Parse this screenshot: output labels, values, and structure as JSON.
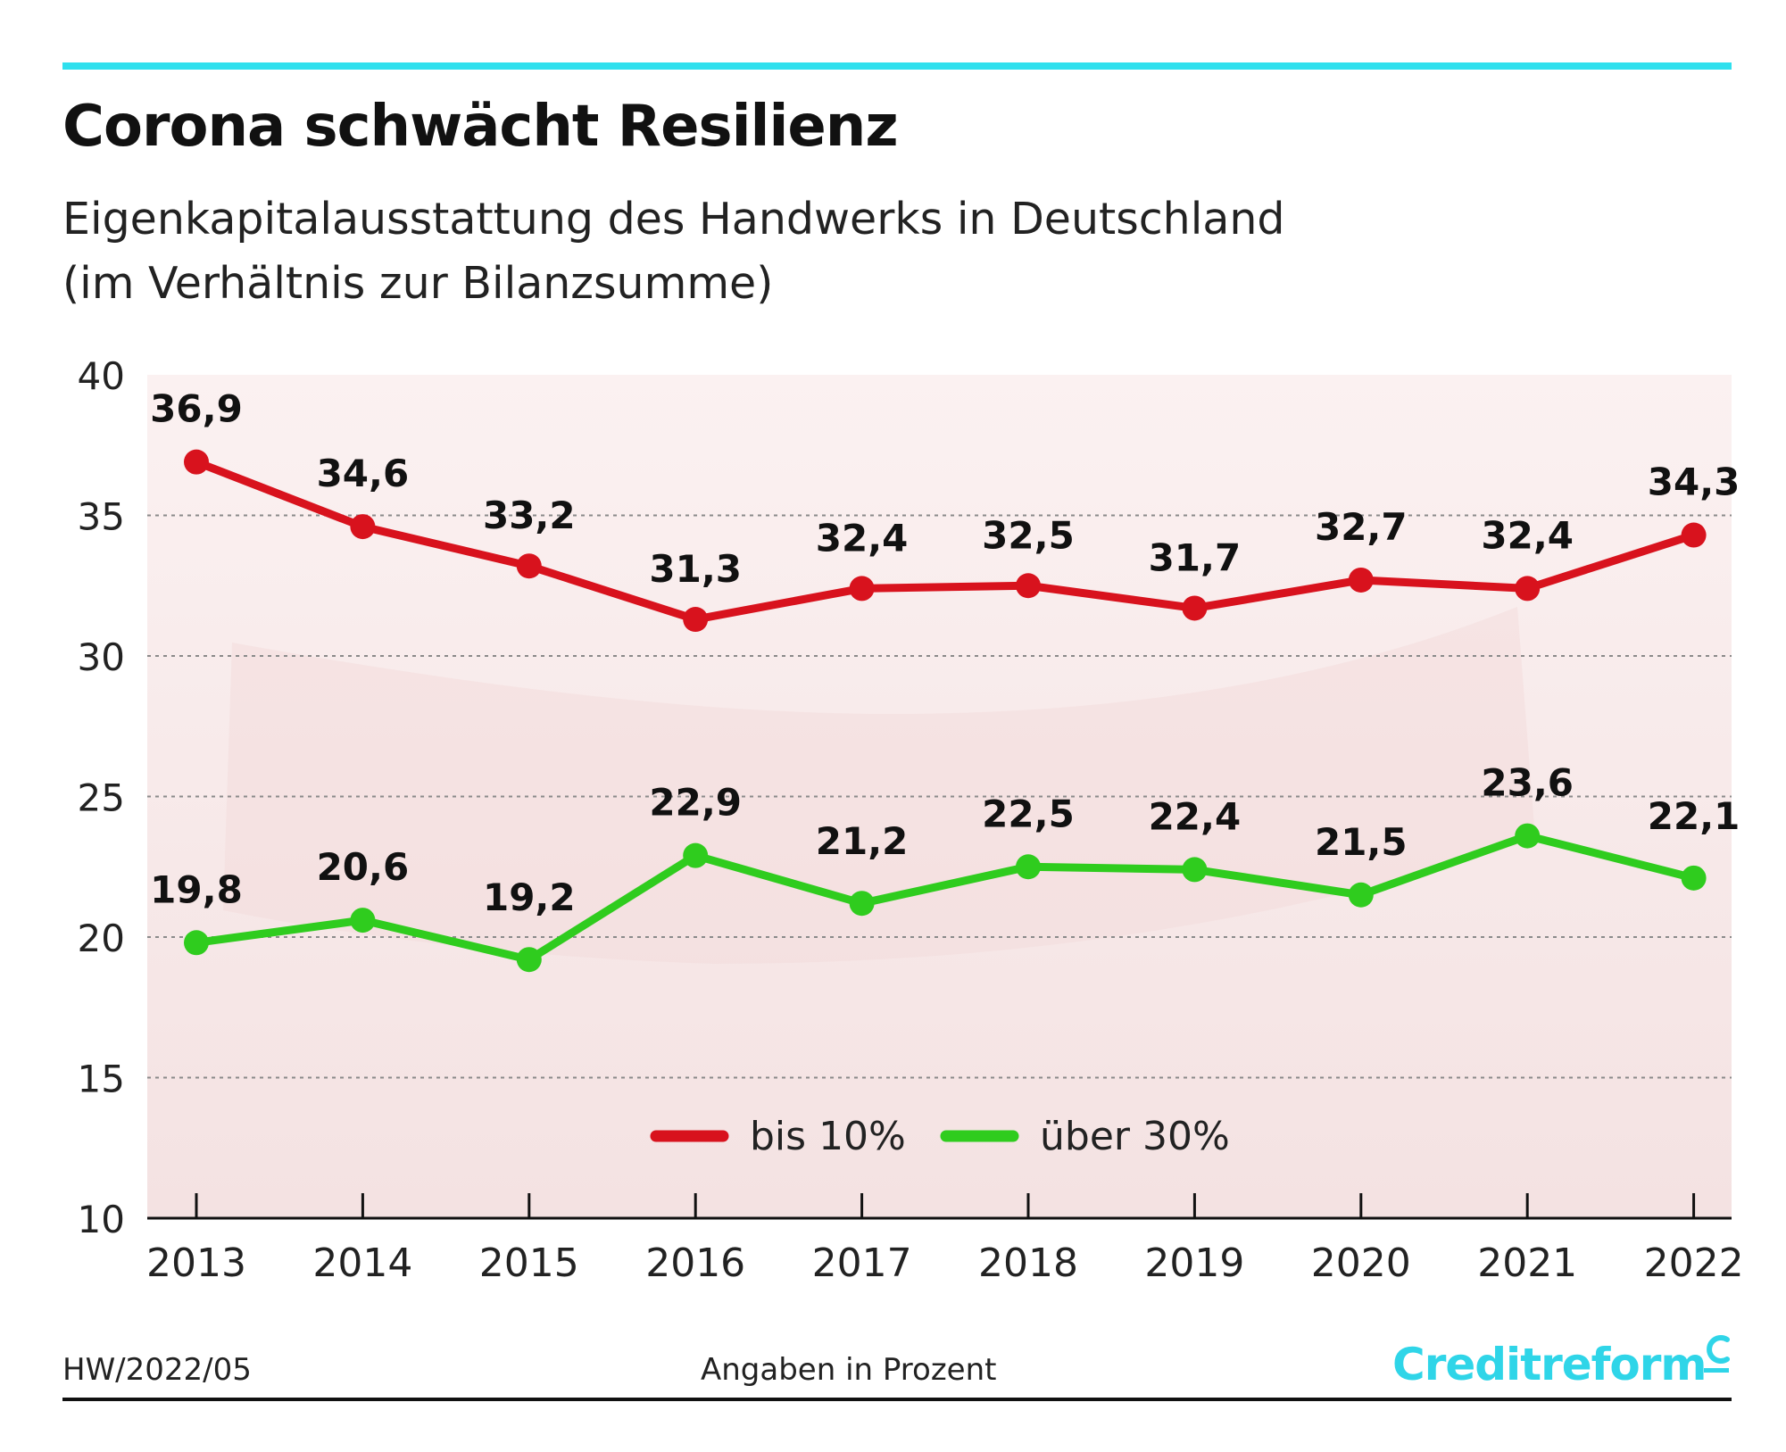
{
  "header": {
    "title": "Corona schwächt Resilienz",
    "subtitle_line1": "Eigenkapitalausstattung des Handwerks in Deutschland",
    "subtitle_line2": "(im Verhältnis zur Bilanzsumme)"
  },
  "footer": {
    "code": "HW/2022/05",
    "note": "Angaben in Prozent",
    "brand": "Creditreform"
  },
  "colors": {
    "accent": "#2fe0ee",
    "series_red": "#d8121d",
    "series_green": "#2fcc1e",
    "brand": "#2fd5e8"
  },
  "chart_data": {
    "type": "line",
    "title": "Corona schwächt Resilienz",
    "xlabel": "",
    "ylabel": "",
    "categories": [
      "2013",
      "2014",
      "2015",
      "2016",
      "2017",
      "2018",
      "2019",
      "2020",
      "2021",
      "2022"
    ],
    "ylim": [
      10,
      40
    ],
    "yticks": [
      10,
      15,
      20,
      25,
      30,
      35,
      40
    ],
    "grid": true,
    "legend_position": "bottom-center",
    "series": [
      {
        "name": "bis 10%",
        "color": "#d8121d",
        "values": [
          36.9,
          34.6,
          33.2,
          31.3,
          32.4,
          32.5,
          31.7,
          32.7,
          32.4,
          34.3
        ],
        "labels": [
          "36,9",
          "34,6",
          "33,2",
          "31,3",
          "32,4",
          "32,5",
          "31,7",
          "32,7",
          "32,4",
          "34,3"
        ]
      },
      {
        "name": "über 30%",
        "color": "#2fcc1e",
        "values": [
          19.8,
          20.6,
          19.2,
          22.9,
          21.2,
          22.5,
          22.4,
          21.5,
          23.6,
          22.1
        ],
        "labels": [
          "19,8",
          "20,6",
          "19,2",
          "22,9",
          "21,2",
          "22,5",
          "22,4",
          "21,5",
          "23,6",
          "22,1"
        ]
      }
    ]
  }
}
